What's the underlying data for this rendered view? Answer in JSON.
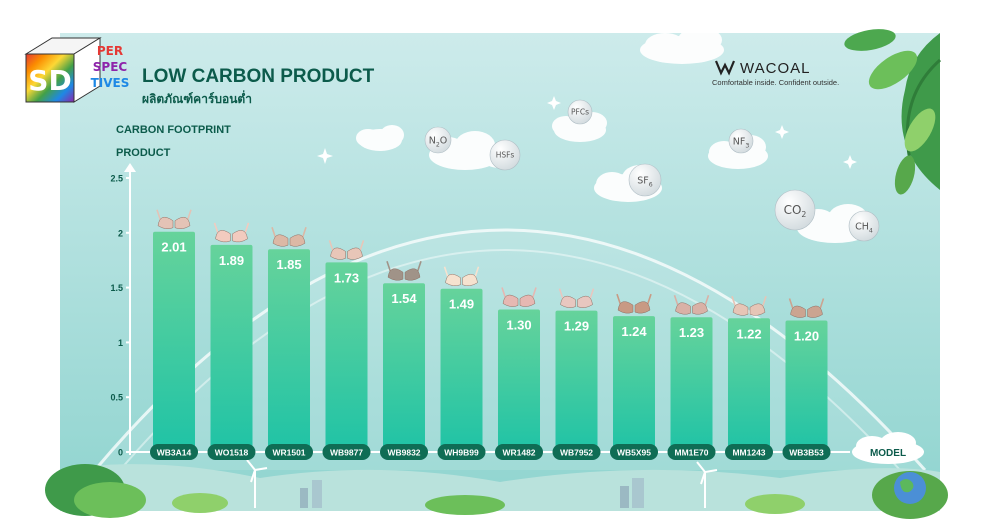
{
  "logo": {
    "letters": "SD",
    "lines": [
      "PER",
      "SPEC",
      "TIVES"
    ]
  },
  "header": {
    "title": "LOW CARBON PRODUCT",
    "subtitle": "ผลิตภัณฑ์คาร์บอนต่ำ"
  },
  "brand": {
    "name": "WACOAL",
    "tagline": "Comfortable inside. Confident outside."
  },
  "gases": [
    {
      "main": "N",
      "sub": "2",
      "tail": "O"
    },
    {
      "main": "HSFs",
      "sub": "",
      "tail": ""
    },
    {
      "main": "PFCs",
      "sub": "",
      "tail": ""
    },
    {
      "main": "NF",
      "sub": "3",
      "tail": ""
    },
    {
      "main": "SF",
      "sub": "6",
      "tail": ""
    },
    {
      "main": "CO",
      "sub": "2",
      "tail": ""
    },
    {
      "main": "CH",
      "sub": "4",
      "tail": ""
    }
  ],
  "colors": {
    "sky_top": "#cdebeb",
    "sky_bottom": "#8fd4cf",
    "bar_top": "#66d39b",
    "bar_bottom": "#1fc3a6",
    "label_pill": "#0f6d55",
    "title": "#0c5b4b"
  },
  "chart_data": {
    "type": "bar",
    "ylabel": [
      "CARBON FOOTPRINT",
      "PRODUCT"
    ],
    "xlabel": "MODEL",
    "ylim": [
      0,
      2.5
    ],
    "yticks": [
      "0",
      "0.5",
      "1",
      "1.5",
      "2",
      "2.5"
    ],
    "categories": [
      "WB3A14",
      "WO1518",
      "WR1501",
      "WB9877",
      "WB9832",
      "WH9B99",
      "WR1482",
      "WB7952",
      "WB5X95",
      "MM1E70",
      "MM1243",
      "WB3B53"
    ],
    "values": [
      2.01,
      1.89,
      1.85,
      1.73,
      1.54,
      1.49,
      1.3,
      1.29,
      1.24,
      1.23,
      1.22,
      1.2
    ],
    "value_labels": [
      "2.01",
      "1.89",
      "1.85",
      "1.73",
      "1.54",
      "1.49",
      "1.30",
      "1.29",
      "1.24",
      "1.23",
      "1.22",
      "1.20"
    ],
    "product_colors": [
      "#e4c3b6",
      "#f2cbbf",
      "#dcb8a5",
      "#e8c6b8",
      "#a09388",
      "#f6e2cf",
      "#e6b8b2",
      "#e8c7c0",
      "#c89a84",
      "#d9b1a6",
      "#e6c5b6",
      "#cba491"
    ],
    "grid": false
  }
}
